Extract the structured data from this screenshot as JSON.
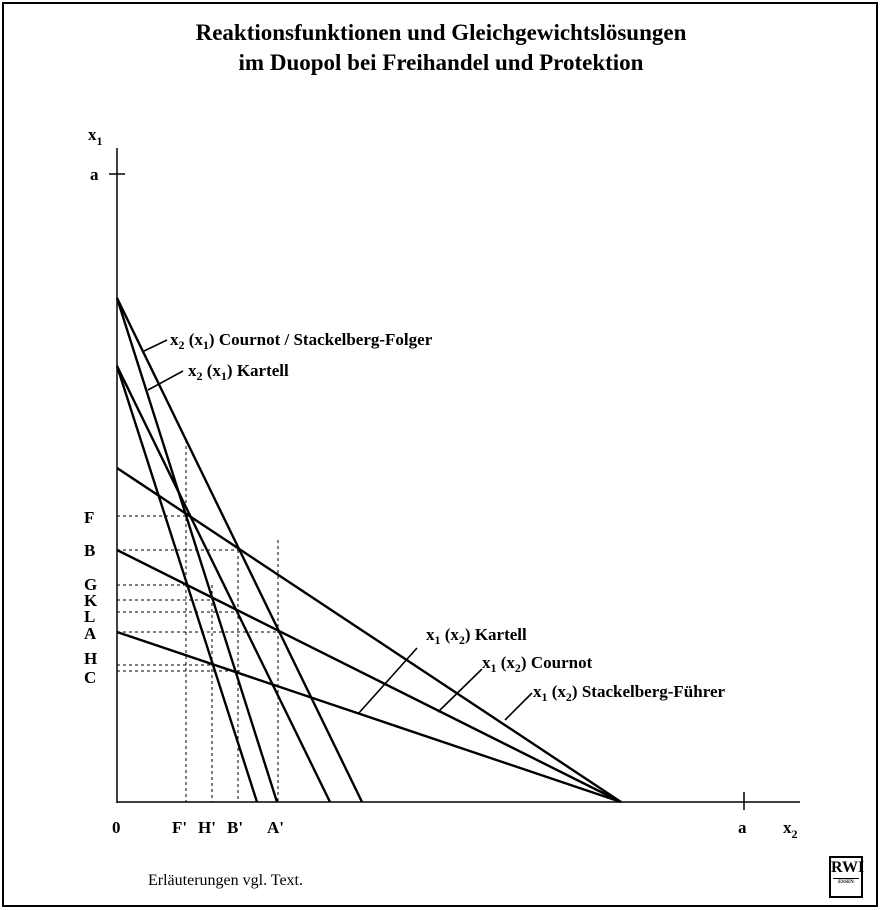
{
  "title": {
    "line1": "Reaktionsfunktionen und Gleichgewichtslösungen",
    "line2": "im Duopol bei Freihandel und Protektion"
  },
  "axes": {
    "y_label": "x",
    "y_label_sub": "1",
    "x_label": "x",
    "x_label_sub": "2",
    "origin": "0",
    "y_tick_a": "a",
    "x_tick_a": "a"
  },
  "y_tick_labels": [
    "F",
    "B",
    "G",
    "K",
    "L",
    "A",
    "H",
    "C"
  ],
  "x_tick_labels": [
    "F'",
    "H'",
    "B'",
    "A'"
  ],
  "curve_labels": {
    "cournot_follower": {
      "main": "x",
      "s1": "2",
      "mid": " (x",
      "s2": "1",
      "rest": ") Cournot / Stackelberg-Folger"
    },
    "kartell_x2": {
      "main": "x",
      "s1": "2",
      "mid": " (x",
      "s2": "1",
      "rest": ") Kartell"
    },
    "kartell_x1": {
      "main": "x",
      "s1": "1",
      "mid": " (x",
      "s2": "2",
      "rest": ") Kartell"
    },
    "cournot_x1": {
      "main": "x",
      "s1": "1",
      "mid": " (x",
      "s2": "2",
      "rest": ") Cournot"
    },
    "stackelberg_leader": {
      "main": "x",
      "s1": "1",
      "mid": " (x",
      "s2": "2",
      "rest": ") Stackelberg-Führer"
    }
  },
  "footnote": "Erläuterungen vgl. Text.",
  "logo": {
    "text": "RWI",
    "sub": "ESSEN"
  }
}
